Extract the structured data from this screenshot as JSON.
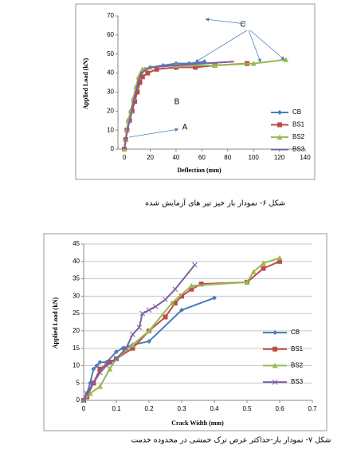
{
  "chart_data": [
    {
      "type": "line",
      "caption": "شکل ۶- نمودار بار خیز تیر های آزمایش شده",
      "x_label": "Deflection (mm)",
      "y_label": "Applied Load (kN)",
      "xlim": [
        -5,
        140
      ],
      "ylim": [
        0,
        70
      ],
      "xticks": [
        0,
        20,
        40,
        60,
        80,
        100,
        120,
        140
      ],
      "yticks": [
        0,
        10,
        20,
        30,
        40,
        50,
        60,
        70
      ],
      "grid": false,
      "annotations": [
        "A",
        "B",
        "C"
      ],
      "series": [
        {
          "name": "CB",
          "color": "#4a7ebb",
          "marker": "diamond",
          "x": [
            0,
            1,
            2,
            3,
            5,
            7,
            9,
            11,
            13,
            16,
            20,
            30,
            40,
            50,
            62
          ],
          "values": [
            0,
            5,
            10,
            15,
            20,
            25,
            30,
            35,
            40,
            42,
            43,
            44,
            45,
            45,
            46
          ]
        },
        {
          "name": "BS1",
          "color": "#be4b48",
          "marker": "square",
          "x": [
            0,
            1,
            2,
            4,
            6,
            8,
            10,
            12,
            14,
            18,
            25,
            40,
            55,
            70,
            95
          ],
          "values": [
            0,
            5,
            10,
            15,
            20,
            25,
            30,
            35,
            38,
            40,
            42,
            43,
            43,
            44,
            45
          ]
        },
        {
          "name": "BS2",
          "color": "#98b954",
          "marker": "triangle",
          "x": [
            0,
            1,
            2,
            3,
            5,
            7,
            9,
            11,
            14,
            20,
            40,
            70,
            100,
            125
          ],
          "values": [
            0,
            5,
            10,
            15,
            20,
            27,
            33,
            38,
            42,
            43,
            44,
            44,
            45,
            47
          ]
        },
        {
          "name": "BS3",
          "color": "#7d60a0",
          "marker": "none",
          "x": [
            0,
            1,
            3,
            5,
            7,
            9,
            11,
            13,
            20,
            40,
            60,
            85
          ],
          "values": [
            0,
            5,
            12,
            18,
            25,
            30,
            36,
            40,
            43,
            44,
            45,
            46
          ]
        }
      ]
    },
    {
      "type": "line",
      "caption": "شکل ۷- نمودار بار-حداکثر عرض ترک خمشی در محدوده خدمت",
      "x_label": "Crack Width (mm)",
      "y_label": "Applied Load (kN)",
      "xlim": [
        0,
        0.7
      ],
      "ylim": [
        0,
        45
      ],
      "xticks": [
        0,
        0.1,
        0.2,
        0.3,
        0.4,
        0.5,
        0.6,
        0.7
      ],
      "yticks": [
        0,
        5,
        10,
        15,
        20,
        25,
        30,
        35,
        40,
        45
      ],
      "grid": true,
      "series": [
        {
          "name": "CB",
          "color": "#4a7ebb",
          "marker": "diamond",
          "x": [
            0,
            0.01,
            0.02,
            0.03,
            0.04,
            0.05,
            0.07,
            0.1,
            0.12,
            0.15,
            0.2,
            0.3,
            0.4
          ],
          "values": [
            0,
            2,
            5,
            9,
            10,
            11,
            11,
            14,
            15,
            16,
            17,
            26,
            29.5
          ]
        },
        {
          "name": "BS1",
          "color": "#be4b48",
          "marker": "square",
          "x": [
            0,
            0.01,
            0.03,
            0.05,
            0.08,
            0.1,
            0.15,
            0.2,
            0.25,
            0.28,
            0.3,
            0.33,
            0.36,
            0.5,
            0.55,
            0.6
          ],
          "values": [
            0,
            1,
            5,
            9,
            11,
            12,
            15,
            20,
            24,
            28,
            30,
            32,
            33.5,
            34,
            38,
            40
          ]
        },
        {
          "name": "BS2",
          "color": "#98b954",
          "marker": "triangle",
          "x": [
            0,
            0.02,
            0.05,
            0.08,
            0.1,
            0.15,
            0.2,
            0.27,
            0.33,
            0.5,
            0.52,
            0.55,
            0.6
          ],
          "values": [
            0,
            2,
            4,
            9,
            12,
            16,
            20,
            28,
            33,
            34,
            37,
            39.5,
            41
          ]
        },
        {
          "name": "BS3",
          "color": "#7d60a0",
          "marker": "cross",
          "x": [
            0,
            0.01,
            0.03,
            0.05,
            0.07,
            0.1,
            0.13,
            0.15,
            0.17,
            0.18,
            0.2,
            0.22,
            0.25,
            0.28,
            0.34
          ],
          "values": [
            0,
            2,
            5,
            8,
            10,
            12,
            15,
            19,
            21,
            25,
            26,
            27,
            29,
            32,
            39
          ]
        }
      ]
    }
  ]
}
